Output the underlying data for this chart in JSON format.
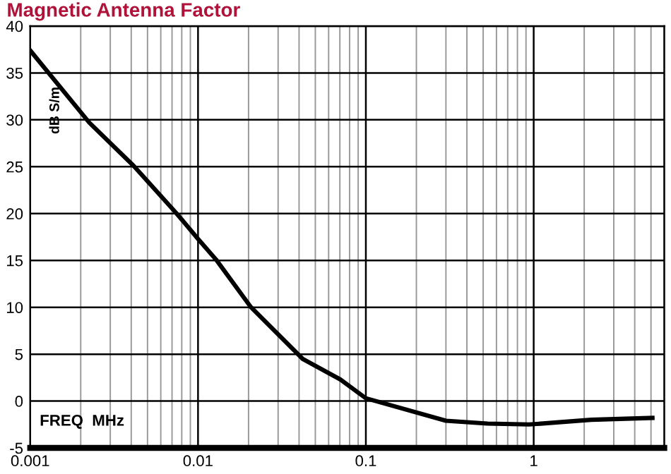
{
  "chart_data": {
    "type": "line",
    "title": "Magnetic Antenna Factor",
    "xlabel": "FREQ  MHz",
    "ylabel": "dB S/m",
    "log": "x",
    "grid": true,
    "marker": "none",
    "line_style": "solid",
    "xlim": [
      0.001,
      6
    ],
    "xticks": [
      0.001,
      0.01,
      0.1,
      1
    ],
    "ylim": [
      -5,
      40
    ],
    "yticks": [
      -5,
      0,
      5,
      10,
      15,
      20,
      25,
      30,
      35,
      40
    ],
    "series": [
      {
        "color": "#000000",
        "x": [
          0.001,
          0.00225,
          0.00413,
          0.00738,
          0.01,
          0.0128,
          0.0207,
          0.042,
          0.0705,
          0.1,
          0.3,
          0.53,
          0.94,
          2.2,
          5.1
        ],
        "values": [
          37.4,
          29.7,
          25.1,
          20.1,
          17.3,
          15.1,
          10.0,
          4.5,
          2.3,
          0.3,
          -2.1,
          -2.4,
          -2.5,
          -2.0,
          -1.8
        ]
      }
    ]
  }
}
